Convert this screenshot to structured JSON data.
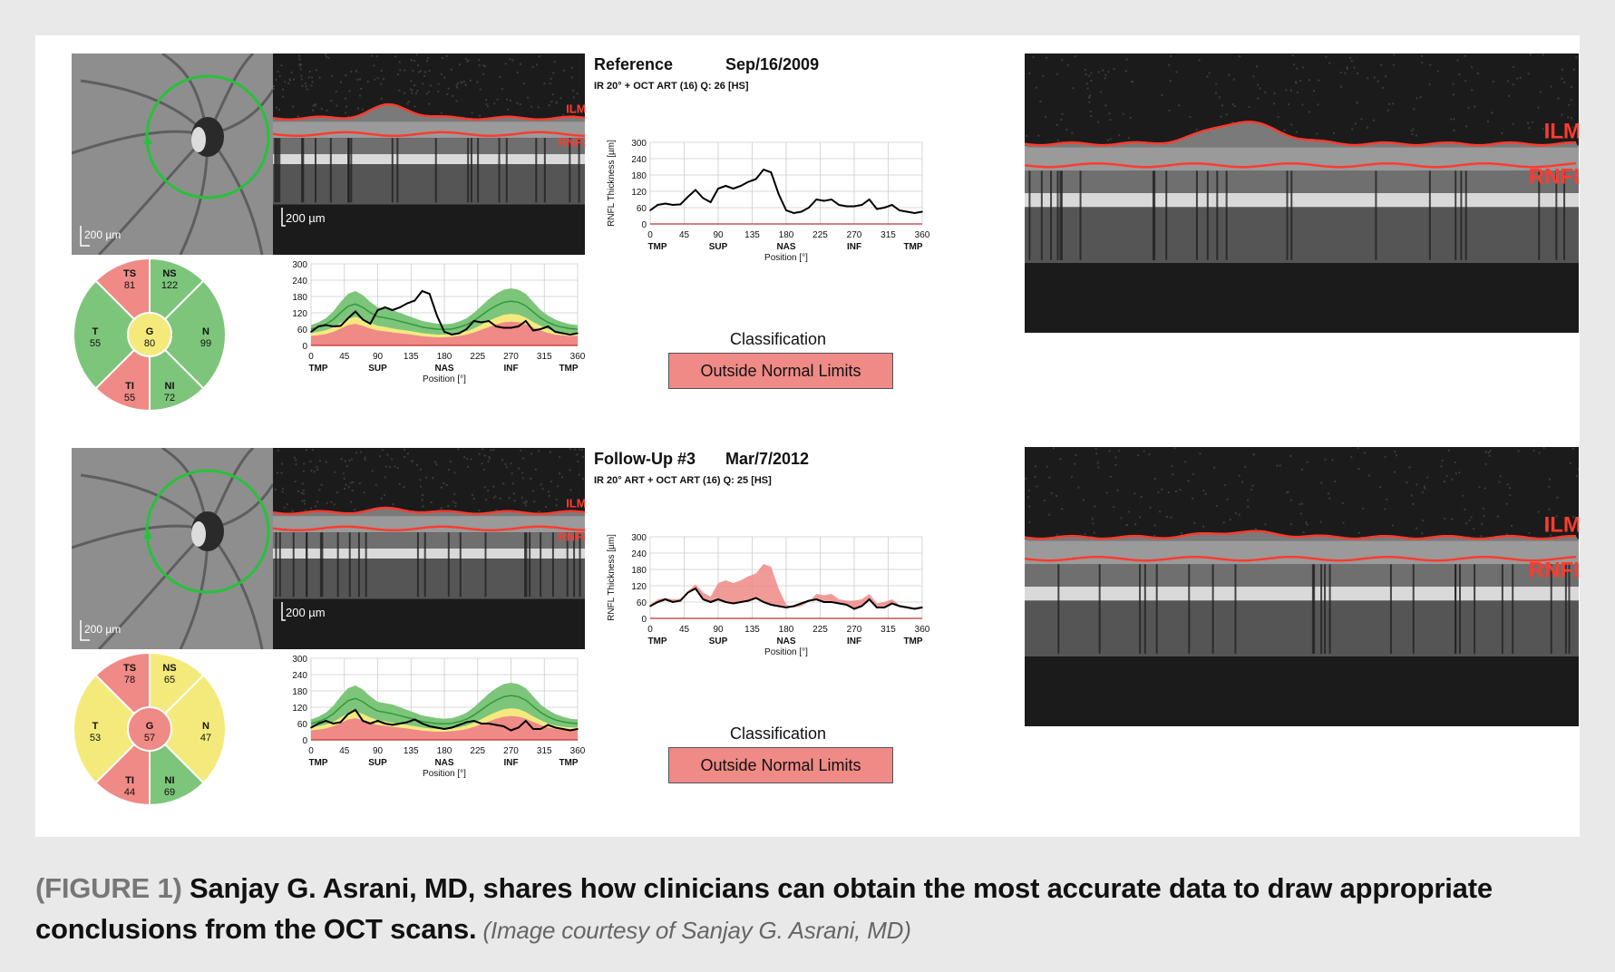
{
  "colors": {
    "normal_green": "#7dc57a",
    "borderline_yellow": "#f4ea7c",
    "outside_red": "#ef8a86",
    "scan_line_red": "#ff3b2f",
    "fundus_circle_green": "#26c23a"
  },
  "panels": [
    {
      "title": "Reference",
      "date": "Sep/16/2009",
      "acquisition": "IR 20° + OCT ART (16) Q: 26 [HS]",
      "fundus_scale_label": "200 µm",
      "bscan_scale_label": "200 µm",
      "bscan_labels": [
        "ILM",
        "RNFL"
      ],
      "sectors": {
        "TS": {
          "label": "TS",
          "value": "81",
          "status": "outside"
        },
        "NS": {
          "label": "NS",
          "value": "122",
          "status": "normal"
        },
        "T": {
          "label": "T",
          "value": "55",
          "status": "normal"
        },
        "G": {
          "label": "G",
          "value": "80",
          "status": "borderline"
        },
        "N": {
          "label": "N",
          "value": "99",
          "status": "normal"
        },
        "TI": {
          "label": "TI",
          "value": "55",
          "status": "outside"
        },
        "NI": {
          "label": "NI",
          "value": "72",
          "status": "normal"
        }
      },
      "classification_title": "Classification",
      "classification": "Outside Normal Limits"
    },
    {
      "title": "Follow-Up #3",
      "date": "Mar/7/2012",
      "acquisition": "IR 20° ART + OCT ART (16) Q: 25 [HS]",
      "fundus_scale_label": "200 µm",
      "bscan_scale_label": "200 µm",
      "bscan_labels": [
        "ILM",
        "RNFL"
      ],
      "sectors": {
        "TS": {
          "label": "TS",
          "value": "78",
          "status": "outside"
        },
        "NS": {
          "label": "NS",
          "value": "65",
          "status": "borderline"
        },
        "T": {
          "label": "T",
          "value": "53",
          "status": "borderline"
        },
        "G": {
          "label": "G",
          "value": "57",
          "status": "outside"
        },
        "N": {
          "label": "N",
          "value": "47",
          "status": "borderline"
        },
        "TI": {
          "label": "TI",
          "value": "44",
          "status": "outside"
        },
        "NI": {
          "label": "NI",
          "value": "69",
          "status": "normal"
        }
      },
      "classification_title": "Classification",
      "classification": "Outside Normal Limits"
    }
  ],
  "big_scans": [
    {
      "labels": [
        "ILM",
        "RNFL"
      ]
    },
    {
      "labels": [
        "ILM",
        "RNFL"
      ]
    }
  ],
  "chart_data": [
    {
      "type": "line",
      "ylabel": "RNFL Thickness [µm]",
      "xlabel": "Position [°]",
      "ylim": [
        0,
        300
      ],
      "y_ticks": [
        0,
        60,
        120,
        180,
        240,
        300
      ],
      "x_ticks": [
        0,
        45,
        90,
        135,
        180,
        225,
        270,
        315,
        360
      ],
      "x_region_labels": [
        {
          "x": 0,
          "label": "TMP"
        },
        {
          "x": 90,
          "label": "SUP"
        },
        {
          "x": 180,
          "label": "NAS"
        },
        {
          "x": 270,
          "label": "INF"
        },
        {
          "x": 360,
          "label": "TMP"
        }
      ],
      "x": [
        0,
        10,
        20,
        30,
        40,
        50,
        60,
        70,
        80,
        90,
        100,
        110,
        120,
        130,
        140,
        150,
        160,
        170,
        180,
        190,
        200,
        210,
        220,
        230,
        240,
        250,
        260,
        270,
        280,
        290,
        300,
        310,
        320,
        330,
        340,
        350,
        360
      ],
      "series": [
        {
          "values": [
            50,
            70,
            75,
            70,
            72,
            100,
            125,
            95,
            80,
            130,
            140,
            130,
            140,
            155,
            165,
            200,
            190,
            110,
            50,
            40,
            45,
            60,
            90,
            85,
            90,
            70,
            65,
            65,
            70,
            90,
            55,
            60,
            70,
            50,
            45,
            40,
            45
          ]
        }
      ]
    },
    {
      "type": "line",
      "xlabel": "Position [°]",
      "ylim": [
        0,
        300
      ],
      "y_ticks": [
        0,
        60,
        120,
        180,
        240,
        300
      ],
      "x_ticks": [
        0,
        45,
        90,
        135,
        180,
        225,
        270,
        315,
        360
      ],
      "x_region_labels": [
        {
          "x": 0,
          "label": "TMP"
        },
        {
          "x": 90,
          "label": "SUP"
        },
        {
          "x": 180,
          "label": "NAS"
        },
        {
          "x": 270,
          "label": "INF"
        },
        {
          "x": 360,
          "label": "TMP"
        }
      ],
      "x": [
        0,
        10,
        20,
        30,
        40,
        50,
        60,
        70,
        80,
        90,
        100,
        110,
        120,
        130,
        140,
        150,
        160,
        170,
        180,
        190,
        200,
        210,
        220,
        230,
        240,
        250,
        260,
        270,
        280,
        290,
        300,
        310,
        320,
        330,
        340,
        350,
        360
      ],
      "series": [
        {
          "values": [
            50,
            70,
            75,
            70,
            72,
            100,
            125,
            95,
            80,
            130,
            140,
            130,
            140,
            155,
            165,
            200,
            190,
            110,
            50,
            40,
            45,
            60,
            90,
            85,
            90,
            70,
            65,
            65,
            70,
            90,
            55,
            60,
            70,
            50,
            45,
            40,
            45
          ]
        }
      ]
    },
    {
      "type": "line",
      "ylabel": "RNFL Thickness [µm]",
      "xlabel": "Position [°]",
      "ylim": [
        0,
        300
      ],
      "y_ticks": [
        0,
        60,
        120,
        180,
        240,
        300
      ],
      "x_ticks": [
        0,
        45,
        90,
        135,
        180,
        225,
        270,
        315,
        360
      ],
      "x_region_labels": [
        {
          "x": 0,
          "label": "TMP"
        },
        {
          "x": 90,
          "label": "SUP"
        },
        {
          "x": 180,
          "label": "NAS"
        },
        {
          "x": 270,
          "label": "INF"
        },
        {
          "x": 360,
          "label": "TMP"
        }
      ],
      "x": [
        0,
        10,
        20,
        30,
        40,
        50,
        60,
        70,
        80,
        90,
        100,
        110,
        120,
        130,
        140,
        150,
        160,
        170,
        180,
        190,
        200,
        210,
        220,
        230,
        240,
        250,
        260,
        270,
        280,
        290,
        300,
        310,
        320,
        330,
        340,
        350,
        360
      ],
      "series": [
        {
          "values": [
            50,
            70,
            75,
            70,
            72,
            100,
            125,
            95,
            80,
            130,
            140,
            130,
            140,
            155,
            165,
            200,
            190,
            110,
            50,
            40,
            45,
            60,
            90,
            85,
            90,
            70,
            65,
            65,
            70,
            90,
            55,
            60,
            70,
            50,
            45,
            40,
            45
          ]
        },
        {
          "values": [
            45,
            60,
            70,
            60,
            65,
            95,
            110,
            70,
            60,
            70,
            60,
            55,
            60,
            65,
            75,
            60,
            50,
            45,
            40,
            45,
            55,
            65,
            70,
            60,
            60,
            55,
            50,
            35,
            45,
            70,
            40,
            40,
            55,
            45,
            40,
            35,
            40
          ]
        }
      ]
    },
    {
      "type": "line",
      "xlabel": "Position [°]",
      "ylim": [
        0,
        300
      ],
      "y_ticks": [
        0,
        60,
        120,
        180,
        240,
        300
      ],
      "x_ticks": [
        0,
        45,
        90,
        135,
        180,
        225,
        270,
        315,
        360
      ],
      "x_region_labels": [
        {
          "x": 0,
          "label": "TMP"
        },
        {
          "x": 90,
          "label": "SUP"
        },
        {
          "x": 180,
          "label": "NAS"
        },
        {
          "x": 270,
          "label": "INF"
        },
        {
          "x": 360,
          "label": "TMP"
        }
      ],
      "x": [
        0,
        10,
        20,
        30,
        40,
        50,
        60,
        70,
        80,
        90,
        100,
        110,
        120,
        130,
        140,
        150,
        160,
        170,
        180,
        190,
        200,
        210,
        220,
        230,
        240,
        250,
        260,
        270,
        280,
        290,
        300,
        310,
        320,
        330,
        340,
        350,
        360
      ],
      "series": [
        {
          "values": [
            45,
            60,
            70,
            60,
            65,
            95,
            110,
            70,
            60,
            70,
            60,
            55,
            60,
            65,
            75,
            60,
            50,
            45,
            40,
            45,
            55,
            65,
            70,
            60,
            60,
            55,
            50,
            35,
            45,
            70,
            40,
            40,
            55,
            45,
            40,
            35,
            40
          ]
        }
      ]
    }
  ],
  "norm_bands": {
    "x": [
      0,
      10,
      20,
      30,
      40,
      50,
      60,
      70,
      80,
      90,
      100,
      110,
      120,
      130,
      140,
      150,
      160,
      170,
      180,
      190,
      200,
      210,
      220,
      230,
      240,
      250,
      260,
      270,
      280,
      290,
      300,
      310,
      320,
      330,
      340,
      350,
      360
    ],
    "red_top": [
      35,
      38,
      42,
      50,
      62,
      75,
      80,
      72,
      62,
      55,
      52,
      48,
      45,
      42,
      38,
      34,
      32,
      30,
      30,
      32,
      35,
      40,
      48,
      58,
      68,
      78,
      85,
      88,
      86,
      78,
      66,
      55,
      46,
      40,
      37,
      35,
      35
    ],
    "yellow_top": [
      45,
      50,
      56,
      66,
      82,
      98,
      105,
      95,
      82,
      72,
      68,
      62,
      58,
      54,
      50,
      45,
      42,
      40,
      40,
      42,
      46,
      52,
      62,
      76,
      90,
      102,
      112,
      116,
      113,
      102,
      86,
      72,
      60,
      52,
      48,
      46,
      45
    ],
    "green_top": [
      75,
      85,
      100,
      125,
      160,
      190,
      200,
      185,
      160,
      140,
      135,
      130,
      120,
      110,
      100,
      90,
      85,
      80,
      78,
      80,
      88,
      100,
      120,
      145,
      170,
      190,
      205,
      210,
      205,
      190,
      160,
      130,
      110,
      95,
      85,
      78,
      75
    ]
  },
  "caption": {
    "label": "(FIGURE 1)",
    "text": " Sanjay G. Asrani, MD, shares how clinicians can obtain the most accurate data to draw appropriate conclusions from the OCT scans.",
    "credit": " (Image courtesy of Sanjay G. Asrani, MD)"
  }
}
